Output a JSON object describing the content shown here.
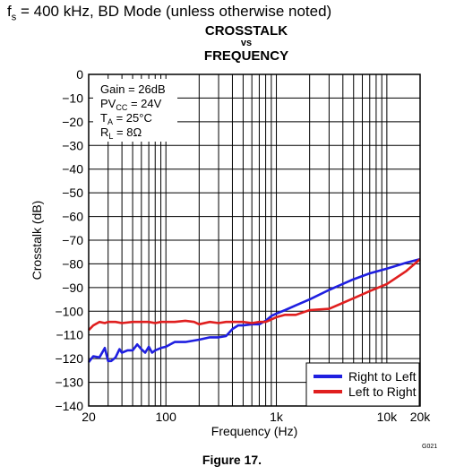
{
  "header": {
    "symbol": "f",
    "subscript": "s",
    "rest": " = 400 kHz, BD Mode (unless otherwise noted)"
  },
  "title_lines": [
    "CROSSTALK",
    "vs",
    "FREQUENCY"
  ],
  "conditions": [
    {
      "main": "Gain = 26dB",
      "sub": "",
      "tail": ""
    },
    {
      "main": "PV",
      "sub": "CC",
      "tail": " = 24V"
    },
    {
      "main": "T",
      "sub": "A",
      "tail": " = 25°C"
    },
    {
      "main": "R",
      "sub": "L",
      "tail": " = 8Ω"
    }
  ],
  "figure_caption": "Figure 17.",
  "graph_code": "G021",
  "colors": {
    "right_to_left": "#1f1fe0",
    "left_to_right": "#e01f1f"
  },
  "chart_data": {
    "type": "line",
    "title": "CROSSTALK vs FREQUENCY",
    "xlabel": "Frequency (Hz)",
    "ylabel": "Crosstalk (dB)",
    "xscale": "log",
    "xlim": [
      20,
      20000
    ],
    "ylim": [
      -140,
      0
    ],
    "x_ticks": [
      20,
      100,
      1000,
      10000,
      20000
    ],
    "x_tick_labels": [
      "20",
      "100",
      "1k",
      "10k",
      "20k"
    ],
    "y_ticks": [
      0,
      -10,
      -20,
      -30,
      -40,
      -50,
      -60,
      -70,
      -80,
      -90,
      -100,
      -110,
      -120,
      -130,
      -140
    ],
    "y_tick_labels": [
      "0",
      "−10",
      "−20",
      "−30",
      "−40",
      "−50",
      "−60",
      "−70",
      "−80",
      "−90",
      "−100",
      "−110",
      "−120",
      "−130",
      "−140"
    ],
    "grid": true,
    "legend_position": "bottom-right",
    "series": [
      {
        "name": "Right to Left",
        "x": [
          20,
          22,
          25,
          28,
          30,
          32,
          35,
          38,
          40,
          45,
          50,
          55,
          60,
          65,
          70,
          75,
          80,
          90,
          100,
          120,
          150,
          200,
          250,
          300,
          350,
          400,
          450,
          500,
          600,
          700,
          800,
          900,
          1000,
          1200,
          1500,
          2000,
          3000,
          5000,
          7000,
          10000,
          15000,
          20000
        ],
        "y": [
          -121.5,
          -119,
          -119.5,
          -115.5,
          -121,
          -121,
          -119.5,
          -116,
          -117.5,
          -116.5,
          -116.5,
          -114,
          -116,
          -117.5,
          -115,
          -117.5,
          -116.5,
          -115.5,
          -115,
          -113,
          -113,
          -112,
          -111,
          -111,
          -110.5,
          -107.5,
          -106,
          -106,
          -105.5,
          -105.5,
          -104,
          -102,
          -101,
          -99.5,
          -97.5,
          -95,
          -91,
          -86.5,
          -84,
          -82,
          -79.5,
          -78
        ]
      },
      {
        "name": "Left to Right",
        "x": [
          20,
          22,
          25,
          28,
          30,
          35,
          40,
          50,
          60,
          70,
          80,
          90,
          100,
          120,
          150,
          180,
          200,
          250,
          300,
          350,
          400,
          450,
          500,
          600,
          700,
          800,
          900,
          1000,
          1200,
          1500,
          2000,
          3000,
          5000,
          7000,
          10000,
          15000,
          20000
        ],
        "y": [
          -108,
          -106,
          -104.5,
          -105,
          -104.5,
          -104.5,
          -105,
          -104.5,
          -104.5,
          -104.5,
          -105,
          -104.5,
          -104.5,
          -104.5,
          -104,
          -104.5,
          -105.5,
          -104.5,
          -105,
          -104.5,
          -104.5,
          -104.5,
          -104.5,
          -105,
          -104.5,
          -104.5,
          -103.5,
          -102.5,
          -101.5,
          -101.5,
          -99.5,
          -99,
          -94.5,
          -91.5,
          -88.5,
          -83,
          -78
        ]
      }
    ]
  }
}
